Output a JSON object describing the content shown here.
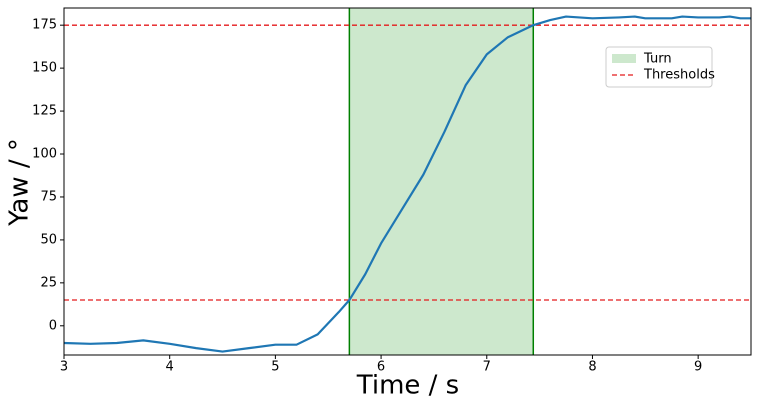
{
  "chart_data": {
    "type": "line",
    "x_label": "Time / s",
    "y_label": "Yaw / °",
    "x": [
      3,
      3.25,
      3.5,
      3.75,
      4,
      4.25,
      4.5,
      4.75,
      5,
      5.2,
      5.4,
      5.6,
      5.7,
      5.85,
      6,
      6.2,
      6.4,
      6.6,
      6.8,
      7,
      7.2,
      7.44,
      7.6,
      7.75,
      8,
      8.25,
      8.4,
      8.5,
      8.75,
      8.85,
      9,
      9.2,
      9.3,
      9.4,
      9.5
    ],
    "values": [
      -10,
      -10.5,
      -10,
      -8.5,
      -10.5,
      -13,
      -15,
      -13,
      -11,
      -11,
      -5,
      8,
      15,
      30,
      48,
      68,
      88,
      113,
      140,
      158,
      168,
      175,
      178,
      180,
      179,
      179.5,
      180,
      179,
      179,
      180,
      179.5,
      179.5,
      180,
      179,
      179
    ],
    "color": "#1f77b4",
    "span": {
      "name": "Turn",
      "xlim": [
        5.7,
        7.44
      ],
      "color": "#2ca02c"
    },
    "hlines": {
      "name": "Thresholds",
      "values": [
        15,
        175
      ],
      "color": "#e41a1c"
    },
    "xlim": [
      3,
      9.5
    ],
    "xticks": [
      3,
      4,
      5,
      6,
      7,
      8,
      9
    ],
    "ylim": [
      -17,
      185
    ],
    "yticks": [
      0,
      25,
      50,
      75,
      100,
      125,
      150,
      175
    ],
    "legend": "upper right"
  }
}
